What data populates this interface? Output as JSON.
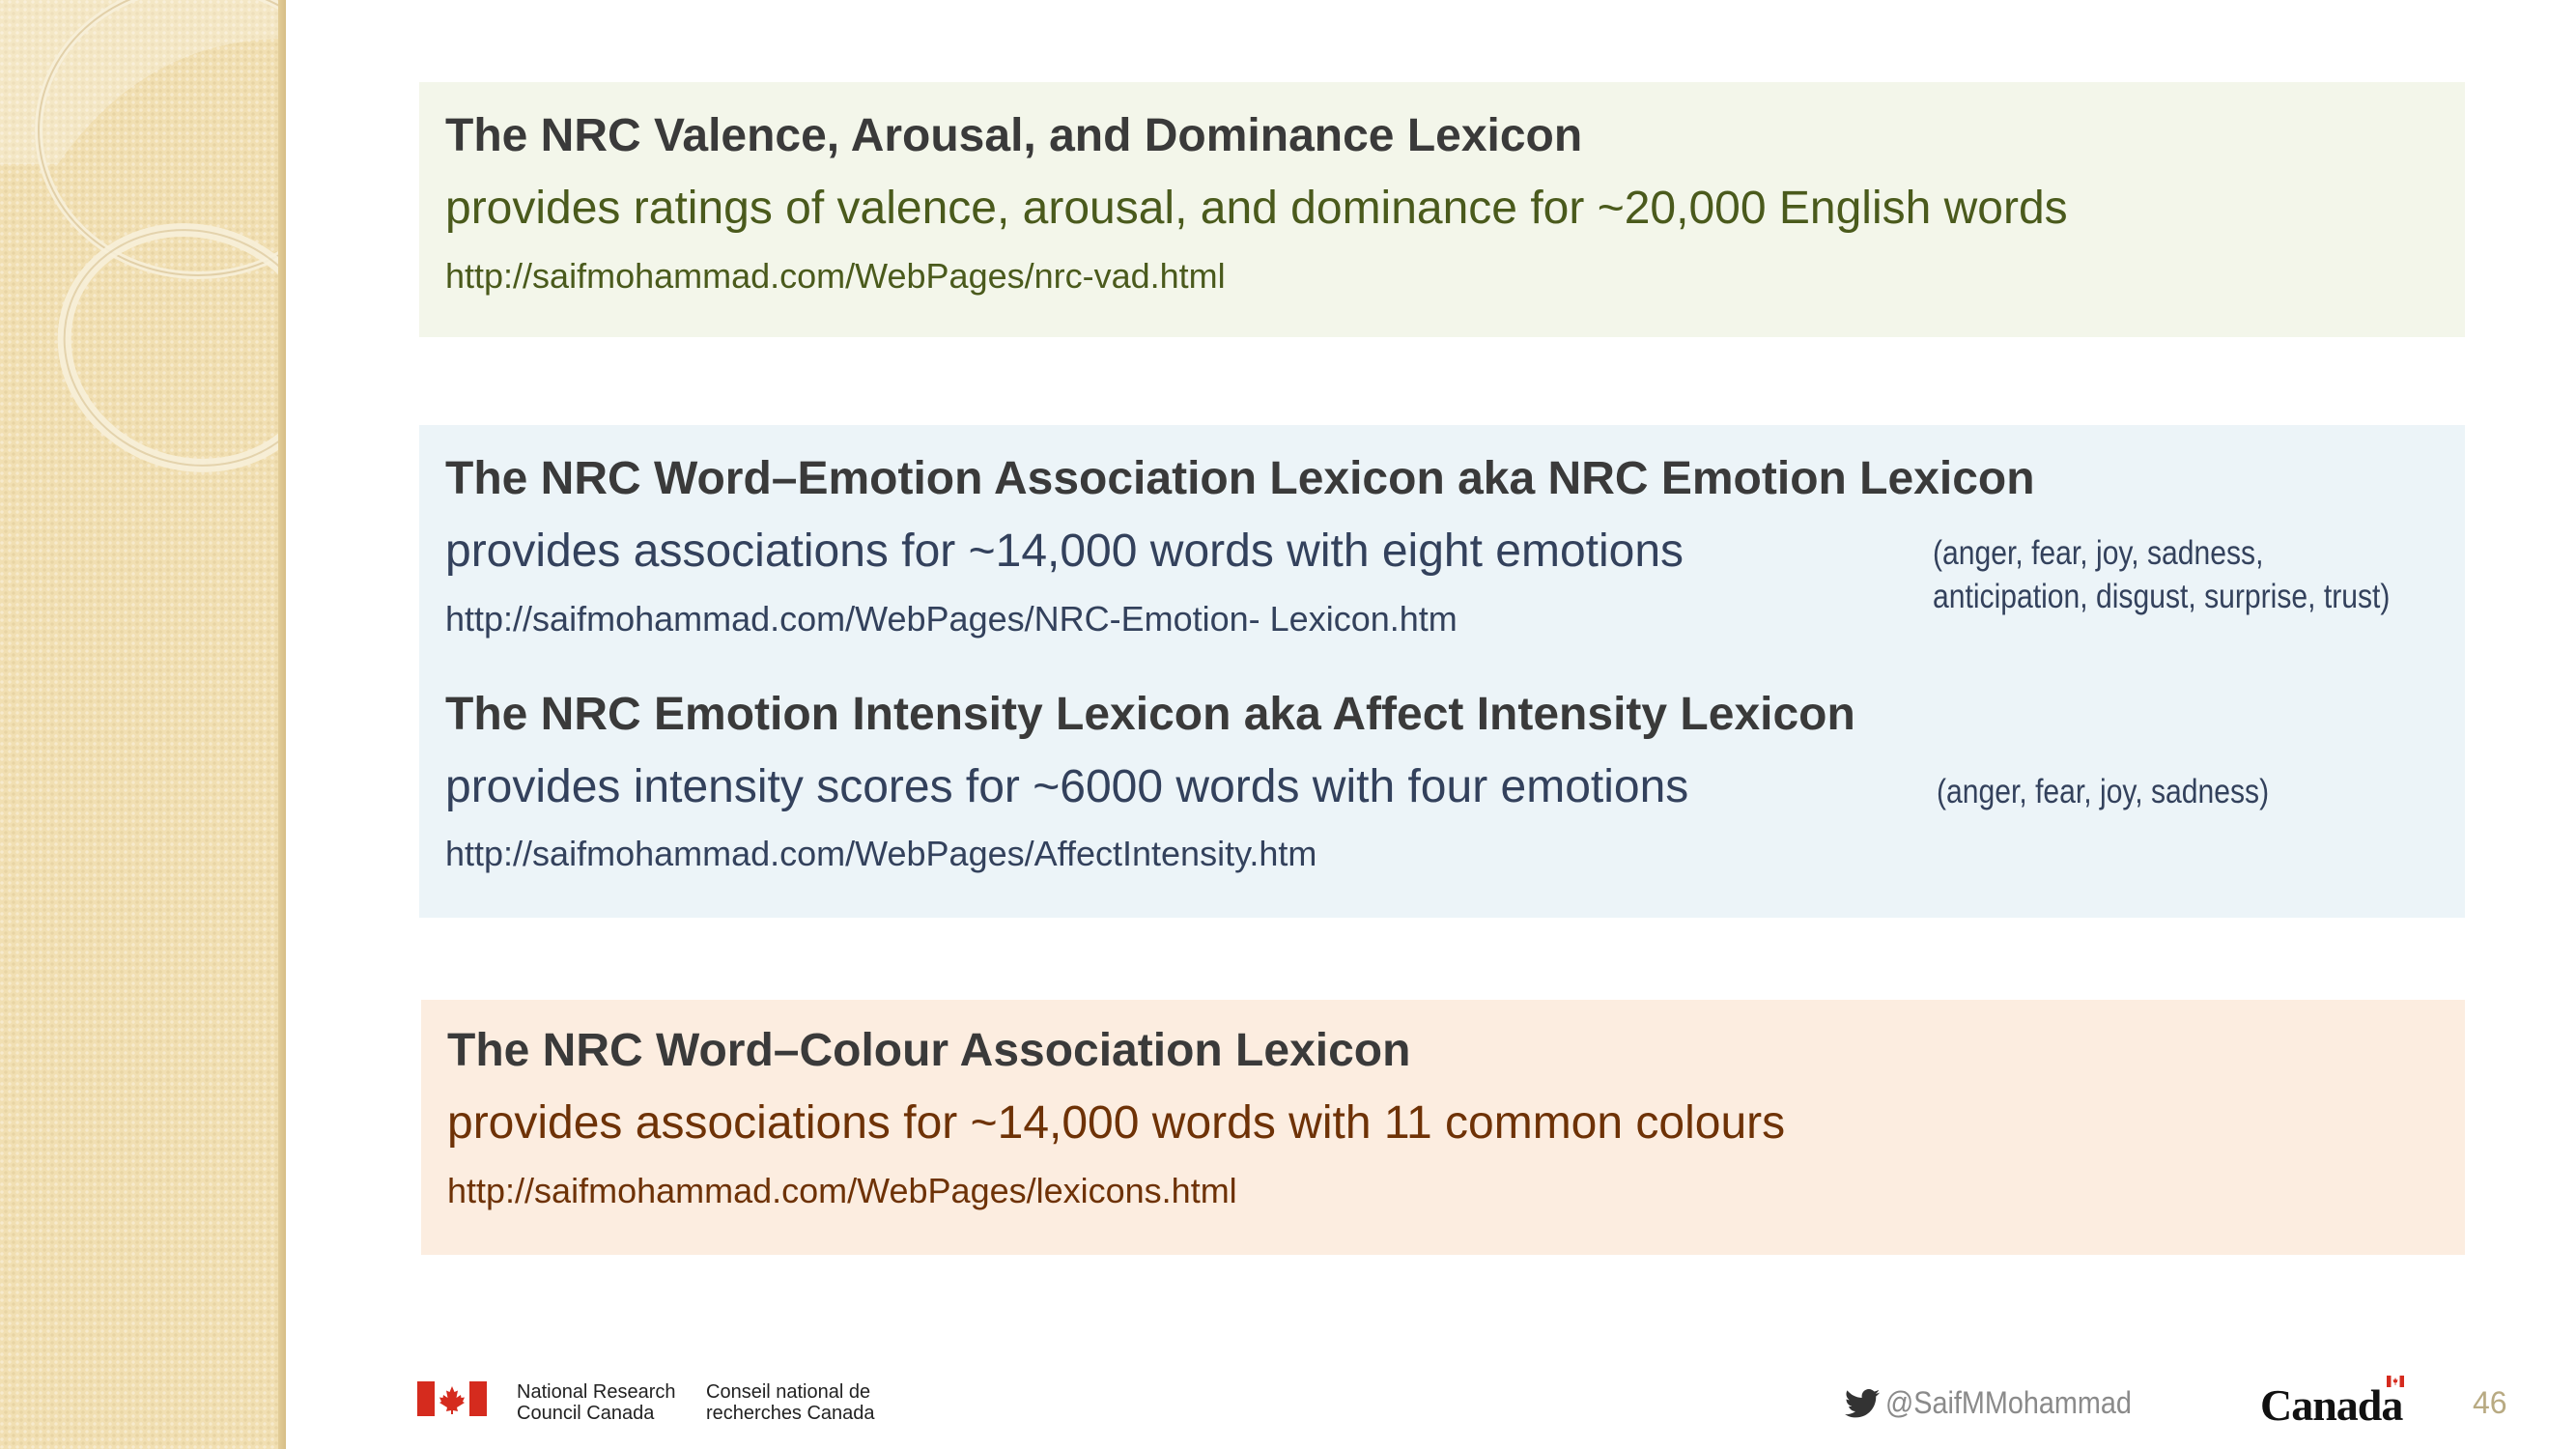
{
  "lexicons": {
    "vad": {
      "title": "The NRC Valence, Arousal, and Dominance Lexicon",
      "desc": "provides ratings of valence, arousal, and dominance for ~20,000 English words",
      "url": "http://saifmohammad.com/WebPages/nrc-vad.html"
    },
    "emotion": {
      "title": "The NRC Word–Emotion Association Lexicon aka NRC Emotion Lexicon",
      "desc": "provides associations for ~14,000 words with eight emotions",
      "url": "http://saifmohammad.com/WebPages/NRC-Emotion- Lexicon.htm",
      "note_line1": "(anger, fear, joy, sadness,",
      "note_line2": "anticipation, disgust, surprise, trust)"
    },
    "intensity": {
      "title": "The NRC Emotion Intensity Lexicon aka Affect Intensity Lexicon",
      "desc": "provides intensity scores for ~6000 words with four emotions",
      "url": "http://saifmohammad.com/WebPages/AffectIntensity.htm",
      "note": "(anger, fear, joy, sadness)"
    },
    "colour": {
      "title": "The NRC Word–Colour Association Lexicon",
      "desc": "provides associations for ~14,000 words with 11 common colours",
      "url": "http://saifmohammad.com/WebPages/lexicons.html"
    }
  },
  "footer": {
    "nrc_en_line1": "National Research",
    "nrc_en_line2": "Council Canada",
    "nrc_fr_line1": "Conseil national de",
    "nrc_fr_line2": "recherches Canada",
    "twitter_handle": "@SaifMMohammad",
    "canada_wordmark": "Canada",
    "page_number": "46"
  },
  "colors": {
    "green_box": "#f3f6ea",
    "blue_box": "#ecf4f8",
    "orange_box": "#fcede0",
    "flag_red": "#d52b1e"
  },
  "icons": [
    "twitter-bird-icon",
    "canada-flag-icon"
  ]
}
